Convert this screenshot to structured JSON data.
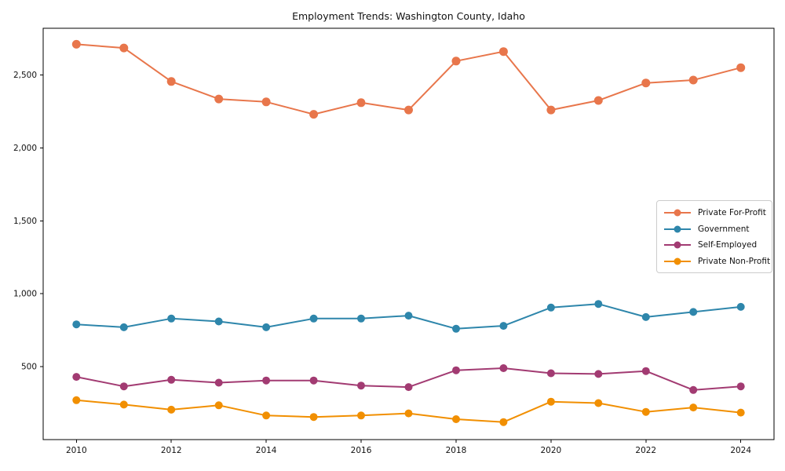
{
  "chart_data": {
    "type": "line",
    "title": "Employment Trends: Washington County, Idaho",
    "xlabel": "",
    "ylabel": "",
    "x": [
      2010,
      2011,
      2012,
      2013,
      2014,
      2015,
      2016,
      2017,
      2018,
      2019,
      2020,
      2021,
      2022,
      2023,
      2024
    ],
    "series": [
      {
        "name": "Private For-Profit",
        "color": "#E8764B",
        "values": [
          2710,
          2685,
          2455,
          2335,
          2315,
          2230,
          2310,
          2260,
          2595,
          2660,
          2260,
          2325,
          2445,
          2465,
          2550
        ]
      },
      {
        "name": "Government",
        "color": "#2E86AB",
        "values": [
          790,
          770,
          830,
          810,
          770,
          830,
          830,
          850,
          760,
          780,
          905,
          930,
          840,
          875,
          910
        ]
      },
      {
        "name": "Self-Employed",
        "color": "#A23B72",
        "values": [
          430,
          365,
          410,
          390,
          405,
          405,
          370,
          360,
          475,
          490,
          455,
          450,
          470,
          340,
          365
        ]
      },
      {
        "name": "Private Non-Profit",
        "color": "#F18F01",
        "values": [
          270,
          240,
          205,
          235,
          165,
          155,
          165,
          180,
          140,
          120,
          260,
          250,
          190,
          220,
          185
        ]
      }
    ],
    "xlim": [
      2009.3,
      2024.7
    ],
    "ylim": [
      0,
      2820
    ],
    "xticks": {
      "values": [
        2010,
        2012,
        2014,
        2016,
        2018,
        2020,
        2022,
        2024
      ],
      "labels": [
        "2010",
        "2012",
        "2014",
        "2016",
        "2018",
        "2020",
        "2022",
        "2024"
      ]
    },
    "yticks": {
      "values": [
        500,
        1000,
        1500,
        2000,
        2500
      ],
      "labels": [
        "500",
        "1,000",
        "1,500",
        "2,000",
        "2,500"
      ]
    },
    "grid": false,
    "legend": {
      "position": "center-right"
    },
    "marker": "circle",
    "axis_color": "#000000",
    "background_color": "#ffffff"
  }
}
